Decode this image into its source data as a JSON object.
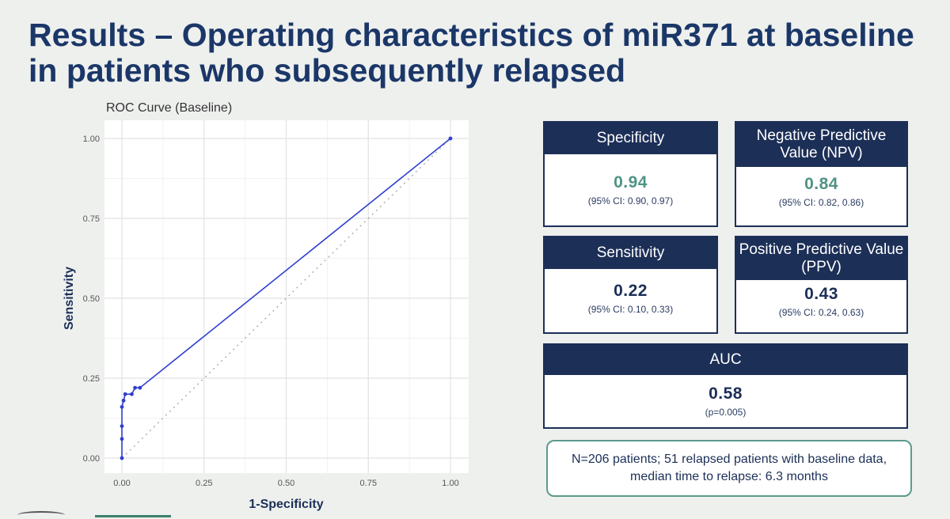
{
  "title": "Results – Operating characteristics of miR371 at baseline in patients who subsequently relapsed",
  "chart_data": {
    "type": "line",
    "title": "ROC Curve (Baseline)",
    "xlabel": "1-Specificity",
    "ylabel": "Sensitivity",
    "xlim": [
      0,
      1
    ],
    "ylim": [
      0,
      1
    ],
    "xticks": [
      "0.00",
      "0.25",
      "0.50",
      "0.75",
      "1.00"
    ],
    "yticks": [
      "0.00",
      "0.25",
      "0.50",
      "0.75",
      "1.00"
    ],
    "grid": true,
    "series": [
      {
        "color": "#2f3fcf",
        "points": [
          [
            0.0,
            0.0
          ],
          [
            0.0,
            0.06
          ],
          [
            0.0,
            0.1
          ],
          [
            0.0,
            0.16
          ],
          [
            0.005,
            0.18
          ],
          [
            0.01,
            0.2
          ],
          [
            0.03,
            0.2
          ],
          [
            0.04,
            0.22
          ],
          [
            0.055,
            0.22
          ],
          [
            1.0,
            1.0
          ]
        ]
      }
    ],
    "reference_line": {
      "from": [
        0,
        0
      ],
      "to": [
        1,
        1
      ],
      "style": "dotted",
      "color": "#aaaaaa"
    }
  },
  "cards": {
    "specificity": {
      "label": "Specificity",
      "value": "0.94",
      "ci": "(95% CI: 0.90, 0.97)"
    },
    "npv": {
      "label": "Negative Predictive Value (NPV)",
      "value": "0.84",
      "ci": "(95% CI: 0.82, 0.86)"
    },
    "sensitivity": {
      "label": "Sensitivity",
      "value": "0.22",
      "ci": "(95% CI: 0.10, 0.33)"
    },
    "ppv": {
      "label": "Positive Predictive Value (PPV)",
      "value": "0.43",
      "ci": "(95% CI: 0.24, 0.63)"
    },
    "auc": {
      "label": "AUC",
      "value": "0.58",
      "p": "(p=0.005)"
    }
  },
  "note": "N=206 patients; 51 relapsed patients with baseline data, median time to relapse: 6.3 months",
  "colors": {
    "navy": "#1c2f57",
    "teal": "#4f9384",
    "title": "#1b3768"
  }
}
